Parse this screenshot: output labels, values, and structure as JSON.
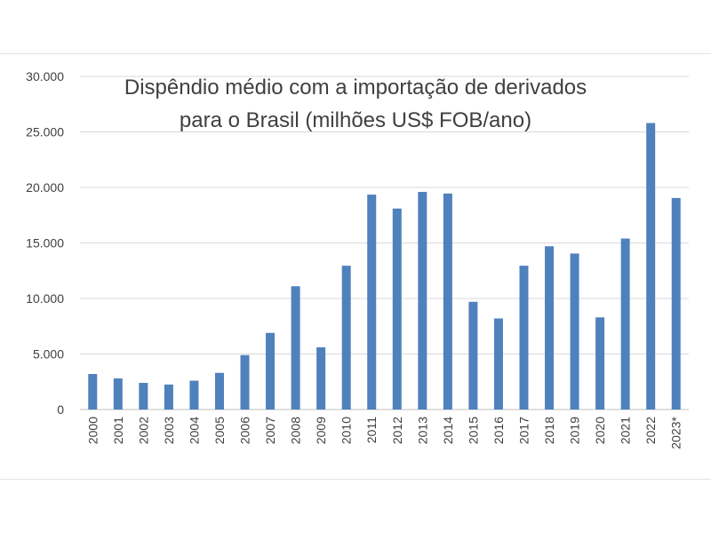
{
  "chart_data": {
    "type": "bar",
    "title_lines": [
      "Dispêndio médio com a importação de derivados",
      "para o Brasil (milhões US$ FOB/ano)"
    ],
    "categories": [
      "2000",
      "2001",
      "2002",
      "2003",
      "2004",
      "2005",
      "2006",
      "2007",
      "2008",
      "2009",
      "2010",
      "2011",
      "2012",
      "2013",
      "2014",
      "2015",
      "2016",
      "2017",
      "2018",
      "2019",
      "2020",
      "2021",
      "2022",
      "2023*"
    ],
    "values": [
      3200,
      2800,
      2400,
      2250,
      2600,
      3300,
      4900,
      6900,
      11100,
      5600,
      12950,
      19350,
      18100,
      19600,
      19450,
      9700,
      8200,
      12950,
      14700,
      14050,
      8300,
      15400,
      25800,
      19050
    ],
    "ylim": [
      0,
      30000
    ],
    "yticks": [
      0,
      5000,
      10000,
      15000,
      20000,
      25000,
      30000
    ],
    "ytick_labels": [
      "0",
      "5.000",
      "10.000",
      "15.000",
      "20.000",
      "25.000",
      "30.000"
    ],
    "grid": true,
    "bar_color": "#4f81bd"
  }
}
